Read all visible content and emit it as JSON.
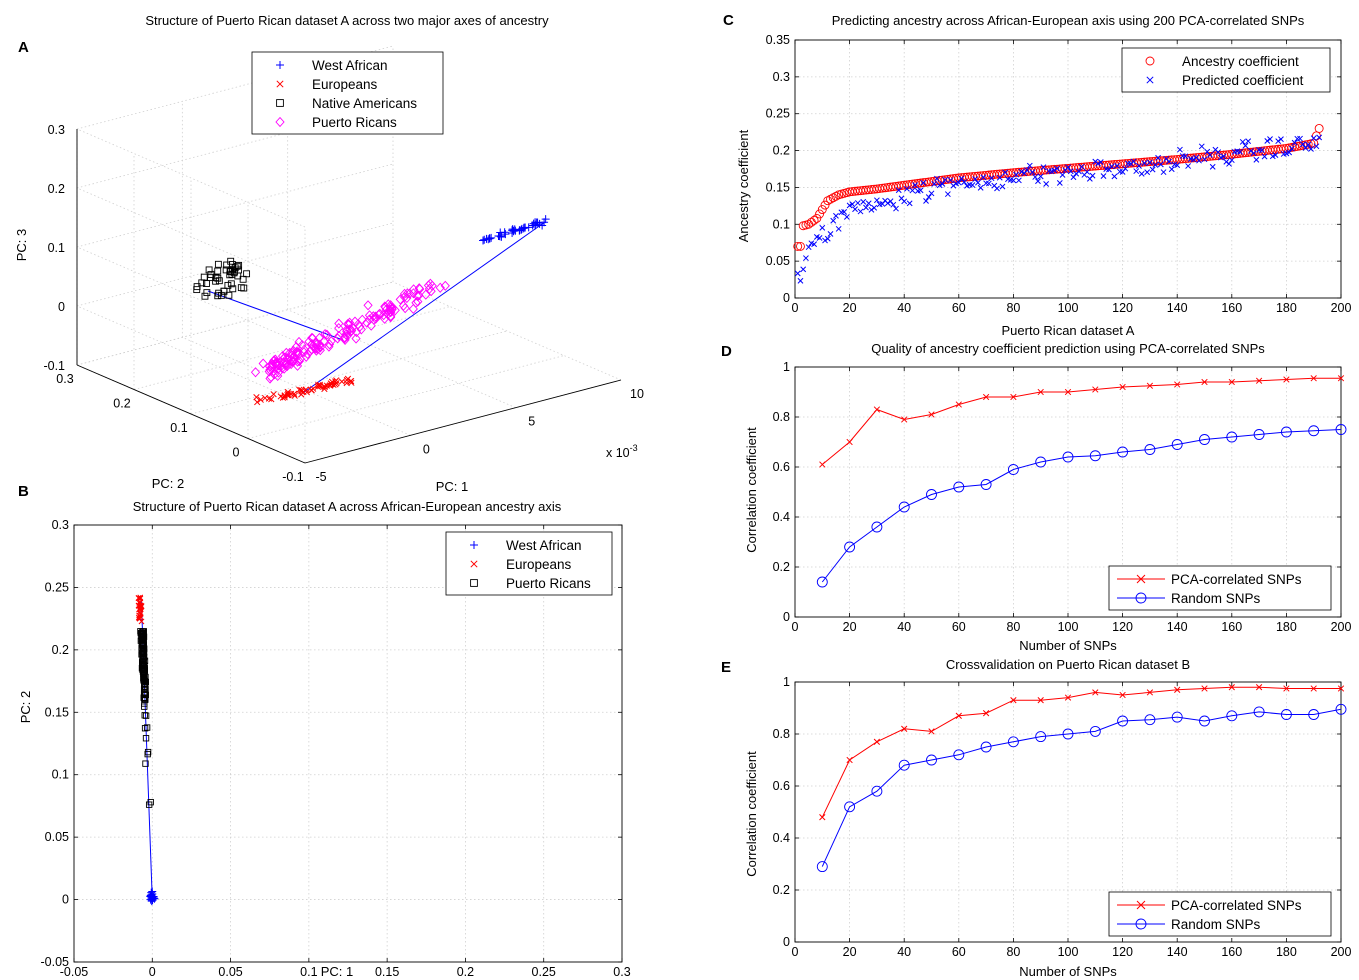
{
  "panels": {
    "A": {
      "letter": "A",
      "title": "Structure of Puerto Rican dataset A across two major axes of ancestry",
      "xlabel": "PC: 1",
      "ylabel": "PC: 2",
      "zlabel": "PC: 3",
      "x_exponent": "x 10",
      "x_exponent_power": "-3",
      "x_ticks": [
        "-5",
        "0",
        "5",
        "10"
      ],
      "y_ticks": [
        "-0.1",
        "0",
        "0.1",
        "0.2",
        "0.3"
      ],
      "z_ticks": [
        "-0.1",
        "0",
        "0.1",
        "0.2",
        "0.3"
      ],
      "legend": [
        "West African",
        "Europeans",
        "Native Americans",
        "Puerto Ricans"
      ]
    },
    "B": {
      "letter": "B",
      "title": "Structure of Puerto Rican dataset A across African-European ancestry axis",
      "xlabel": "PC: 1",
      "ylabel": "PC: 2",
      "legend": [
        "West African",
        "Europeans",
        "Puerto Ricans"
      ]
    },
    "C": {
      "letter": "C",
      "title": "Predicting ancestry across African-European axis using 200 PCA-correlated SNPs",
      "xlabel": "Puerto Rican dataset A",
      "ylabel": "Ancestry coefficient",
      "legend": [
        "Ancestry coefficient",
        "Predicted coefficient"
      ]
    },
    "D": {
      "letter": "D",
      "title": "Quality of ancestry coefficient prediction using PCA-correlated SNPs",
      "xlabel": "Number of SNPs",
      "ylabel": "Correlation coefficient",
      "legend": [
        "PCA-correlated SNPs",
        "Random SNPs"
      ]
    },
    "E": {
      "letter": "E",
      "title": "Crossvalidation on Puerto Rican dataset B",
      "xlabel": "Number of SNPs",
      "ylabel": "Correlation coefficient",
      "legend": [
        "PCA-correlated SNPs",
        "Random SNPs"
      ]
    }
  },
  "colors": {
    "west_african": "#0000ff",
    "europeans": "#ff0000",
    "native_americans": "#000000",
    "puerto_ricans": "#ff00ff",
    "pca_series": "#ff0000",
    "random_series": "#0000ff"
  },
  "chart_data": [
    {
      "type": "scatter",
      "id": "A",
      "dimensions": 3,
      "xlim": [
        -5,
        10
      ],
      "ylim": [
        -0.1,
        0.3
      ],
      "zlim": [
        -0.1,
        0.3
      ],
      "grid": true,
      "legend_position": "top-center",
      "series": [
        {
          "name": "West African",
          "marker": "+",
          "cluster_center": [
            9.5,
            -0.08,
            0.12
          ]
        },
        {
          "name": "Europeans",
          "marker": "x",
          "cluster_center": [
            -4.5,
            0.24,
            0.0
          ]
        },
        {
          "name": "Native Americans",
          "marker": "square",
          "cluster_center": [
            -6,
            0.3,
            0.05
          ]
        },
        {
          "name": "Puerto Ricans",
          "marker": "diamond",
          "cluster_center": [
            -2,
            0.17,
            0.06
          ]
        }
      ]
    },
    {
      "type": "scatter",
      "id": "B",
      "xlim": [
        -0.05,
        0.3
      ],
      "ylim": [
        -0.05,
        0.3
      ],
      "x_ticks": [
        -0.05,
        0,
        0.05,
        0.1,
        0.15,
        0.2,
        0.25,
        0.3
      ],
      "y_ticks": [
        -0.05,
        0,
        0.05,
        0.1,
        0.15,
        0.2,
        0.25,
        0.3
      ],
      "grid": true,
      "legend_position": "top-right",
      "series": [
        {
          "name": "West African",
          "marker": "+",
          "x_range": [
            -0.003,
            0.003
          ],
          "y_range": [
            -0.007,
            0.012
          ]
        },
        {
          "name": "Europeans",
          "marker": "x",
          "x_range": [
            -0.01,
            -0.006
          ],
          "y_range": [
            0.215,
            0.243
          ]
        },
        {
          "name": "Puerto Ricans",
          "marker": "square",
          "x_range": [
            -0.01,
            0.0
          ],
          "y_range": [
            0.076,
            0.215
          ]
        }
      ]
    },
    {
      "type": "scatter",
      "id": "C",
      "xlim": [
        0,
        200
      ],
      "ylim": [
        0,
        0.35
      ],
      "x_ticks": [
        0,
        20,
        40,
        60,
        80,
        100,
        120,
        140,
        160,
        180,
        200
      ],
      "y_ticks": [
        0,
        0.05,
        0.1,
        0.15,
        0.2,
        0.25,
        0.3,
        0.35
      ],
      "grid": true,
      "legend_position": "top-right",
      "n_points": 192,
      "series": [
        {
          "name": "Ancestry coefficient",
          "marker": "circle",
          "curve_x": [
            1,
            2,
            3,
            5,
            8,
            12,
            16,
            20,
            30,
            40,
            60,
            80,
            100,
            120,
            140,
            160,
            180,
            186,
            190,
            192
          ],
          "curve_y": [
            0.07,
            0.07,
            0.098,
            0.1,
            0.108,
            0.132,
            0.14,
            0.144,
            0.148,
            0.153,
            0.163,
            0.17,
            0.176,
            0.182,
            0.188,
            0.195,
            0.203,
            0.207,
            0.21,
            0.23
          ]
        },
        {
          "name": "Predicted coefficient",
          "marker": "x",
          "trend_x": [
            1,
            5,
            10,
            20,
            40,
            60,
            80,
            100,
            120,
            140,
            160,
            180,
            192
          ],
          "trend_y": [
            0.02,
            0.06,
            0.085,
            0.12,
            0.14,
            0.155,
            0.165,
            0.17,
            0.175,
            0.185,
            0.195,
            0.205,
            0.21
          ]
        }
      ]
    },
    {
      "type": "line",
      "id": "D",
      "xlim": [
        0,
        200
      ],
      "ylim": [
        0,
        1
      ],
      "x_ticks": [
        0,
        20,
        40,
        60,
        80,
        100,
        120,
        140,
        160,
        180,
        200
      ],
      "y_ticks": [
        0,
        0.2,
        0.4,
        0.6,
        0.8,
        1
      ],
      "grid": true,
      "legend_position": "bottom-right",
      "x": [
        10,
        20,
        30,
        40,
        50,
        60,
        70,
        80,
        90,
        100,
        110,
        120,
        130,
        140,
        150,
        160,
        170,
        180,
        190,
        200
      ],
      "series": [
        {
          "name": "PCA-correlated SNPs",
          "marker": "x",
          "values": [
            0.61,
            0.7,
            0.83,
            0.79,
            0.81,
            0.85,
            0.88,
            0.88,
            0.9,
            0.9,
            0.91,
            0.92,
            0.925,
            0.93,
            0.94,
            0.94,
            0.945,
            0.95,
            0.955,
            0.955
          ]
        },
        {
          "name": "Random SNPs",
          "marker": "circle",
          "values": [
            0.14,
            0.28,
            0.36,
            0.44,
            0.49,
            0.52,
            0.53,
            0.59,
            0.62,
            0.64,
            0.645,
            0.66,
            0.67,
            0.69,
            0.71,
            0.72,
            0.73,
            0.74,
            0.745,
            0.75
          ]
        }
      ]
    },
    {
      "type": "line",
      "id": "E",
      "xlim": [
        0,
        200
      ],
      "ylim": [
        0,
        1
      ],
      "x_ticks": [
        0,
        20,
        40,
        60,
        80,
        100,
        120,
        140,
        160,
        180,
        200
      ],
      "y_ticks": [
        0,
        0.2,
        0.4,
        0.6,
        0.8,
        1
      ],
      "grid": true,
      "legend_position": "bottom-right",
      "x": [
        10,
        20,
        30,
        40,
        50,
        60,
        70,
        80,
        90,
        100,
        110,
        120,
        130,
        140,
        150,
        160,
        170,
        180,
        190,
        200
      ],
      "series": [
        {
          "name": "PCA-correlated SNPs",
          "marker": "x",
          "values": [
            0.48,
            0.7,
            0.77,
            0.82,
            0.81,
            0.87,
            0.88,
            0.93,
            0.93,
            0.94,
            0.96,
            0.95,
            0.96,
            0.97,
            0.975,
            0.98,
            0.98,
            0.975,
            0.975,
            0.975
          ]
        },
        {
          "name": "Random SNPs",
          "marker": "circle",
          "values": [
            0.29,
            0.52,
            0.58,
            0.68,
            0.7,
            0.72,
            0.75,
            0.77,
            0.79,
            0.8,
            0.81,
            0.85,
            0.855,
            0.865,
            0.85,
            0.87,
            0.885,
            0.875,
            0.875,
            0.895
          ]
        }
      ]
    }
  ]
}
